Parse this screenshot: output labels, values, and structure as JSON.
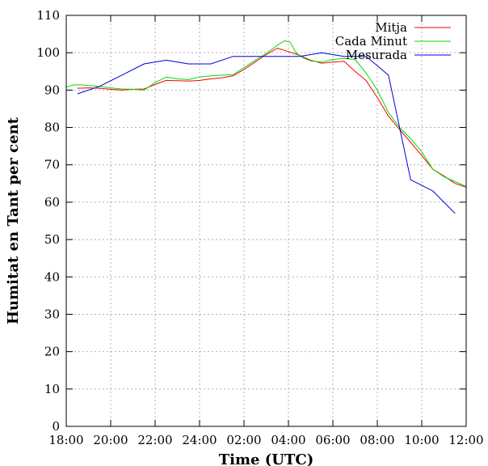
{
  "chart_data": {
    "type": "line",
    "title": "",
    "xlabel": "Time (UTC)",
    "ylabel": "Humitat en Tant per cent",
    "xlim": [
      "18:00",
      "12:00"
    ],
    "ylim": [
      0,
      110
    ],
    "x_ticks": [
      "18:00",
      "20:00",
      "22:00",
      "24:00",
      "02:00",
      "04:00",
      "06:00",
      "08:00",
      "10:00",
      "12:00"
    ],
    "y_ticks": [
      0,
      10,
      20,
      30,
      40,
      50,
      60,
      70,
      80,
      90,
      100,
      110
    ],
    "grid": true,
    "legend_position": "top-right",
    "series": [
      {
        "name": "Mitja",
        "color": "#ff0000",
        "points": [
          [
            "18:30",
            90.5
          ],
          [
            "19:00",
            90.6
          ],
          [
            "19:30",
            90.5
          ],
          [
            "20:00",
            90.2
          ],
          [
            "20:30",
            90.0
          ],
          [
            "21:00",
            90.2
          ],
          [
            "21:30",
            90.3
          ],
          [
            "22:00",
            91.5
          ],
          [
            "22:30",
            92.6
          ],
          [
            "23:00",
            92.5
          ],
          [
            "23:30",
            92.4
          ],
          [
            "24:00",
            92.6
          ],
          [
            "00:30",
            93.0
          ],
          [
            "01:00",
            93.3
          ],
          [
            "01:30",
            93.8
          ],
          [
            "02:00",
            95.5
          ],
          [
            "02:30",
            97.5
          ],
          [
            "03:00",
            99.5
          ],
          [
            "03:30",
            101.2
          ],
          [
            "04:00",
            100.3
          ],
          [
            "04:30",
            99.3
          ],
          [
            "05:00",
            98.0
          ],
          [
            "05:30",
            97.2
          ],
          [
            "06:00",
            97.5
          ],
          [
            "06:30",
            97.7
          ],
          [
            "07:00",
            95.0
          ],
          [
            "07:30",
            92.5
          ],
          [
            "08:00",
            88.0
          ],
          [
            "08:30",
            83.0
          ],
          [
            "09:00",
            79.5
          ],
          [
            "09:30",
            76.0
          ],
          [
            "10:00",
            72.5
          ],
          [
            "10:30",
            68.8
          ],
          [
            "11:00",
            67.0
          ],
          [
            "11:30",
            65.0
          ],
          [
            "12:00",
            64.0
          ]
        ]
      },
      {
        "name": "Cada Minut",
        "color": "#00dd00",
        "points": [
          [
            "18:00",
            90.8
          ],
          [
            "18:20",
            91.4
          ],
          [
            "18:40",
            91.4
          ],
          [
            "19:00",
            91.2
          ],
          [
            "19:30",
            91.0
          ],
          [
            "20:00",
            90.6
          ],
          [
            "20:30",
            90.3
          ],
          [
            "21:00",
            90.2
          ],
          [
            "21:30",
            90.0
          ],
          [
            "22:00",
            92.0
          ],
          [
            "22:30",
            93.5
          ],
          [
            "23:00",
            93.0
          ],
          [
            "23:30",
            92.8
          ],
          [
            "24:00",
            93.5
          ],
          [
            "00:30",
            93.8
          ],
          [
            "01:00",
            94.0
          ],
          [
            "01:30",
            94.1
          ],
          [
            "02:00",
            96.0
          ],
          [
            "02:30",
            98.0
          ],
          [
            "03:00",
            99.8
          ],
          [
            "03:30",
            102.0
          ],
          [
            "03:50",
            103.2
          ],
          [
            "04:05",
            102.8
          ],
          [
            "04:20",
            100.0
          ],
          [
            "04:40",
            98.6
          ],
          [
            "05:00",
            97.8
          ],
          [
            "05:30",
            97.5
          ],
          [
            "06:00",
            98.2
          ],
          [
            "06:30",
            98.5
          ],
          [
            "07:00",
            98.2
          ],
          [
            "07:30",
            94.5
          ],
          [
            "08:00",
            90.0
          ],
          [
            "08:30",
            84.0
          ],
          [
            "09:00",
            80.0
          ],
          [
            "09:30",
            77.0
          ],
          [
            "10:00",
            73.5
          ],
          [
            "10:30",
            68.8
          ],
          [
            "11:00",
            66.8
          ],
          [
            "11:30",
            65.5
          ],
          [
            "12:00",
            64.2
          ]
        ]
      },
      {
        "name": "Mesurada",
        "color": "#0000dd",
        "points": [
          [
            "18:30",
            89
          ],
          [
            "19:30",
            91
          ],
          [
            "20:30",
            94
          ],
          [
            "21:30",
            97
          ],
          [
            "22:30",
            98
          ],
          [
            "23:30",
            97
          ],
          [
            "00:30",
            97
          ],
          [
            "01:30",
            99
          ],
          [
            "02:30",
            99
          ],
          [
            "03:30",
            99
          ],
          [
            "04:30",
            99
          ],
          [
            "05:30",
            100
          ],
          [
            "06:30",
            99
          ],
          [
            "07:30",
            99
          ],
          [
            "08:30",
            94
          ],
          [
            "09:30",
            66
          ],
          [
            "10:30",
            63
          ],
          [
            "11:30",
            57
          ]
        ]
      }
    ]
  }
}
